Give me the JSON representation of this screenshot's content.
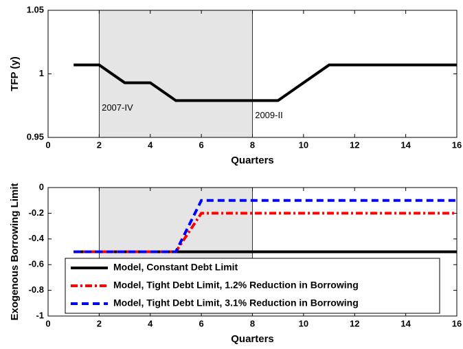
{
  "chart_data": [
    {
      "type": "line",
      "y_label": "TFP (y)",
      "x_label": "Quarters",
      "xlim": [
        0,
        16
      ],
      "xticks": [
        0,
        2,
        4,
        6,
        8,
        10,
        12,
        14,
        16
      ],
      "ylim": [
        0.95,
        1.05
      ],
      "yticks": [
        0.95,
        1,
        1.05
      ],
      "shade": [
        2,
        8
      ],
      "shade_color": "#e5e5e5",
      "x": [
        1,
        2,
        3,
        4,
        5,
        6,
        7,
        8,
        9,
        10,
        11,
        12,
        13,
        14,
        15,
        16
      ],
      "series": [
        {
          "name": null,
          "color": "#000000",
          "style": "solid",
          "values": [
            1.007,
            1.007,
            0.993,
            0.993,
            0.979,
            0.979,
            0.979,
            0.979,
            0.979,
            0.993,
            1.007,
            1.007,
            1.007,
            1.007,
            1.007,
            1.007
          ]
        }
      ],
      "annotations": [
        {
          "text": "2007-IV",
          "x": 2.1,
          "y": 0.973
        },
        {
          "text": "2009-II",
          "x": 8.1,
          "y": 0.967
        }
      ]
    },
    {
      "type": "line",
      "y_label": "Exogenous Borrowing Limit",
      "x_label": "Quarters",
      "xlim": [
        0,
        16
      ],
      "xticks": [
        0,
        2,
        4,
        6,
        8,
        10,
        12,
        14,
        16
      ],
      "ylim": [
        -1,
        0
      ],
      "yticks": [
        -1,
        -0.8,
        -0.6,
        -0.4,
        -0.2,
        0
      ],
      "shade": [
        2,
        8
      ],
      "shade_color": "#e5e5e5",
      "legend": "lower center",
      "x": [
        1,
        2,
        3,
        4,
        5,
        6,
        7,
        8,
        9,
        10,
        11,
        12,
        13,
        14,
        15,
        16
      ],
      "series": [
        {
          "name": "Model, Constant Debt Limit",
          "color": "#000000",
          "style": "solid",
          "values": [
            -0.5,
            -0.5,
            -0.5,
            -0.5,
            -0.5,
            -0.5,
            -0.5,
            -0.5,
            -0.5,
            -0.5,
            -0.5,
            -0.5,
            -0.5,
            -0.5,
            -0.5,
            -0.5
          ]
        },
        {
          "name": "Model, Tight Debt Limit, 1.2% Reduction in Borrowing",
          "color": "#ff0000",
          "style": "dashdot",
          "values": [
            -0.5,
            -0.5,
            -0.5,
            -0.5,
            -0.5,
            -0.2,
            -0.2,
            -0.2,
            -0.2,
            -0.2,
            -0.2,
            -0.2,
            -0.2,
            -0.2,
            -0.2,
            -0.2
          ]
        },
        {
          "name": "Model, Tight Debt Limit, 3.1% Reduction in Borrowing",
          "color": "#0000ff",
          "style": "dashed",
          "values": [
            -0.5,
            -0.5,
            -0.5,
            -0.5,
            -0.5,
            -0.1,
            -0.1,
            -0.1,
            -0.1,
            -0.1,
            -0.1,
            -0.1,
            -0.1,
            -0.1,
            -0.1,
            -0.1
          ]
        }
      ]
    }
  ]
}
